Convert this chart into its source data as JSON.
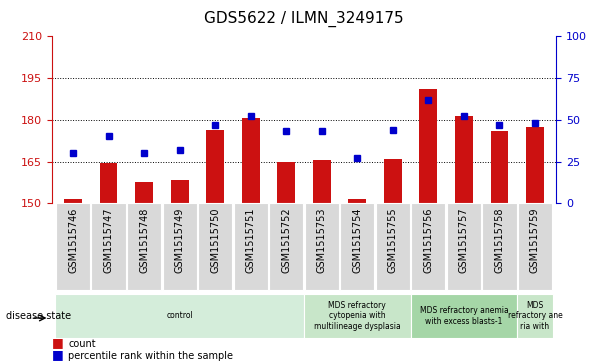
{
  "title": "GDS5622 / ILMN_3249175",
  "categories": [
    "GSM1515746",
    "GSM1515747",
    "GSM1515748",
    "GSM1515749",
    "GSM1515750",
    "GSM1515751",
    "GSM1515752",
    "GSM1515753",
    "GSM1515754",
    "GSM1515755",
    "GSM1515756",
    "GSM1515757",
    "GSM1515758",
    "GSM1515759"
  ],
  "bar_values": [
    151.5,
    164.5,
    157.5,
    158.5,
    176.5,
    180.5,
    165.0,
    165.5,
    151.5,
    166.0,
    191.0,
    181.5,
    176.0,
    177.5
  ],
  "percentile_values": [
    30,
    40,
    30,
    32,
    47,
    52,
    43,
    43,
    27,
    44,
    62,
    52,
    47,
    48
  ],
  "bar_color": "#cc1111",
  "dot_color": "#0000cc",
  "ylim_left": [
    150,
    210
  ],
  "ylim_right": [
    0,
    100
  ],
  "yticks_left": [
    150,
    165,
    180,
    195,
    210
  ],
  "yticks_right": [
    0,
    25,
    50,
    75,
    100
  ],
  "disease_state_groups": [
    {
      "label": "control",
      "start": 0,
      "end": 7,
      "color": "#d4edda"
    },
    {
      "label": "MDS refractory\ncytopenia with\nmultilineage dysplasia",
      "start": 7,
      "end": 10,
      "color": "#c8e6c9"
    },
    {
      "label": "MDS refractory anemia\nwith excess blasts-1",
      "start": 10,
      "end": 13,
      "color": "#a5d6a7"
    },
    {
      "label": "MDS\nrefractory ane\nria with",
      "start": 13,
      "end": 14,
      "color": "#c8e6c9"
    }
  ],
  "disease_state_label": "disease state",
  "left_axis_color": "#cc1111",
  "right_axis_color": "#0000cc",
  "bar_baseline": 150,
  "grid_color": "#000000",
  "bar_width": 0.5,
  "xticklabel_fontsize": 7,
  "title_fontsize": 11
}
